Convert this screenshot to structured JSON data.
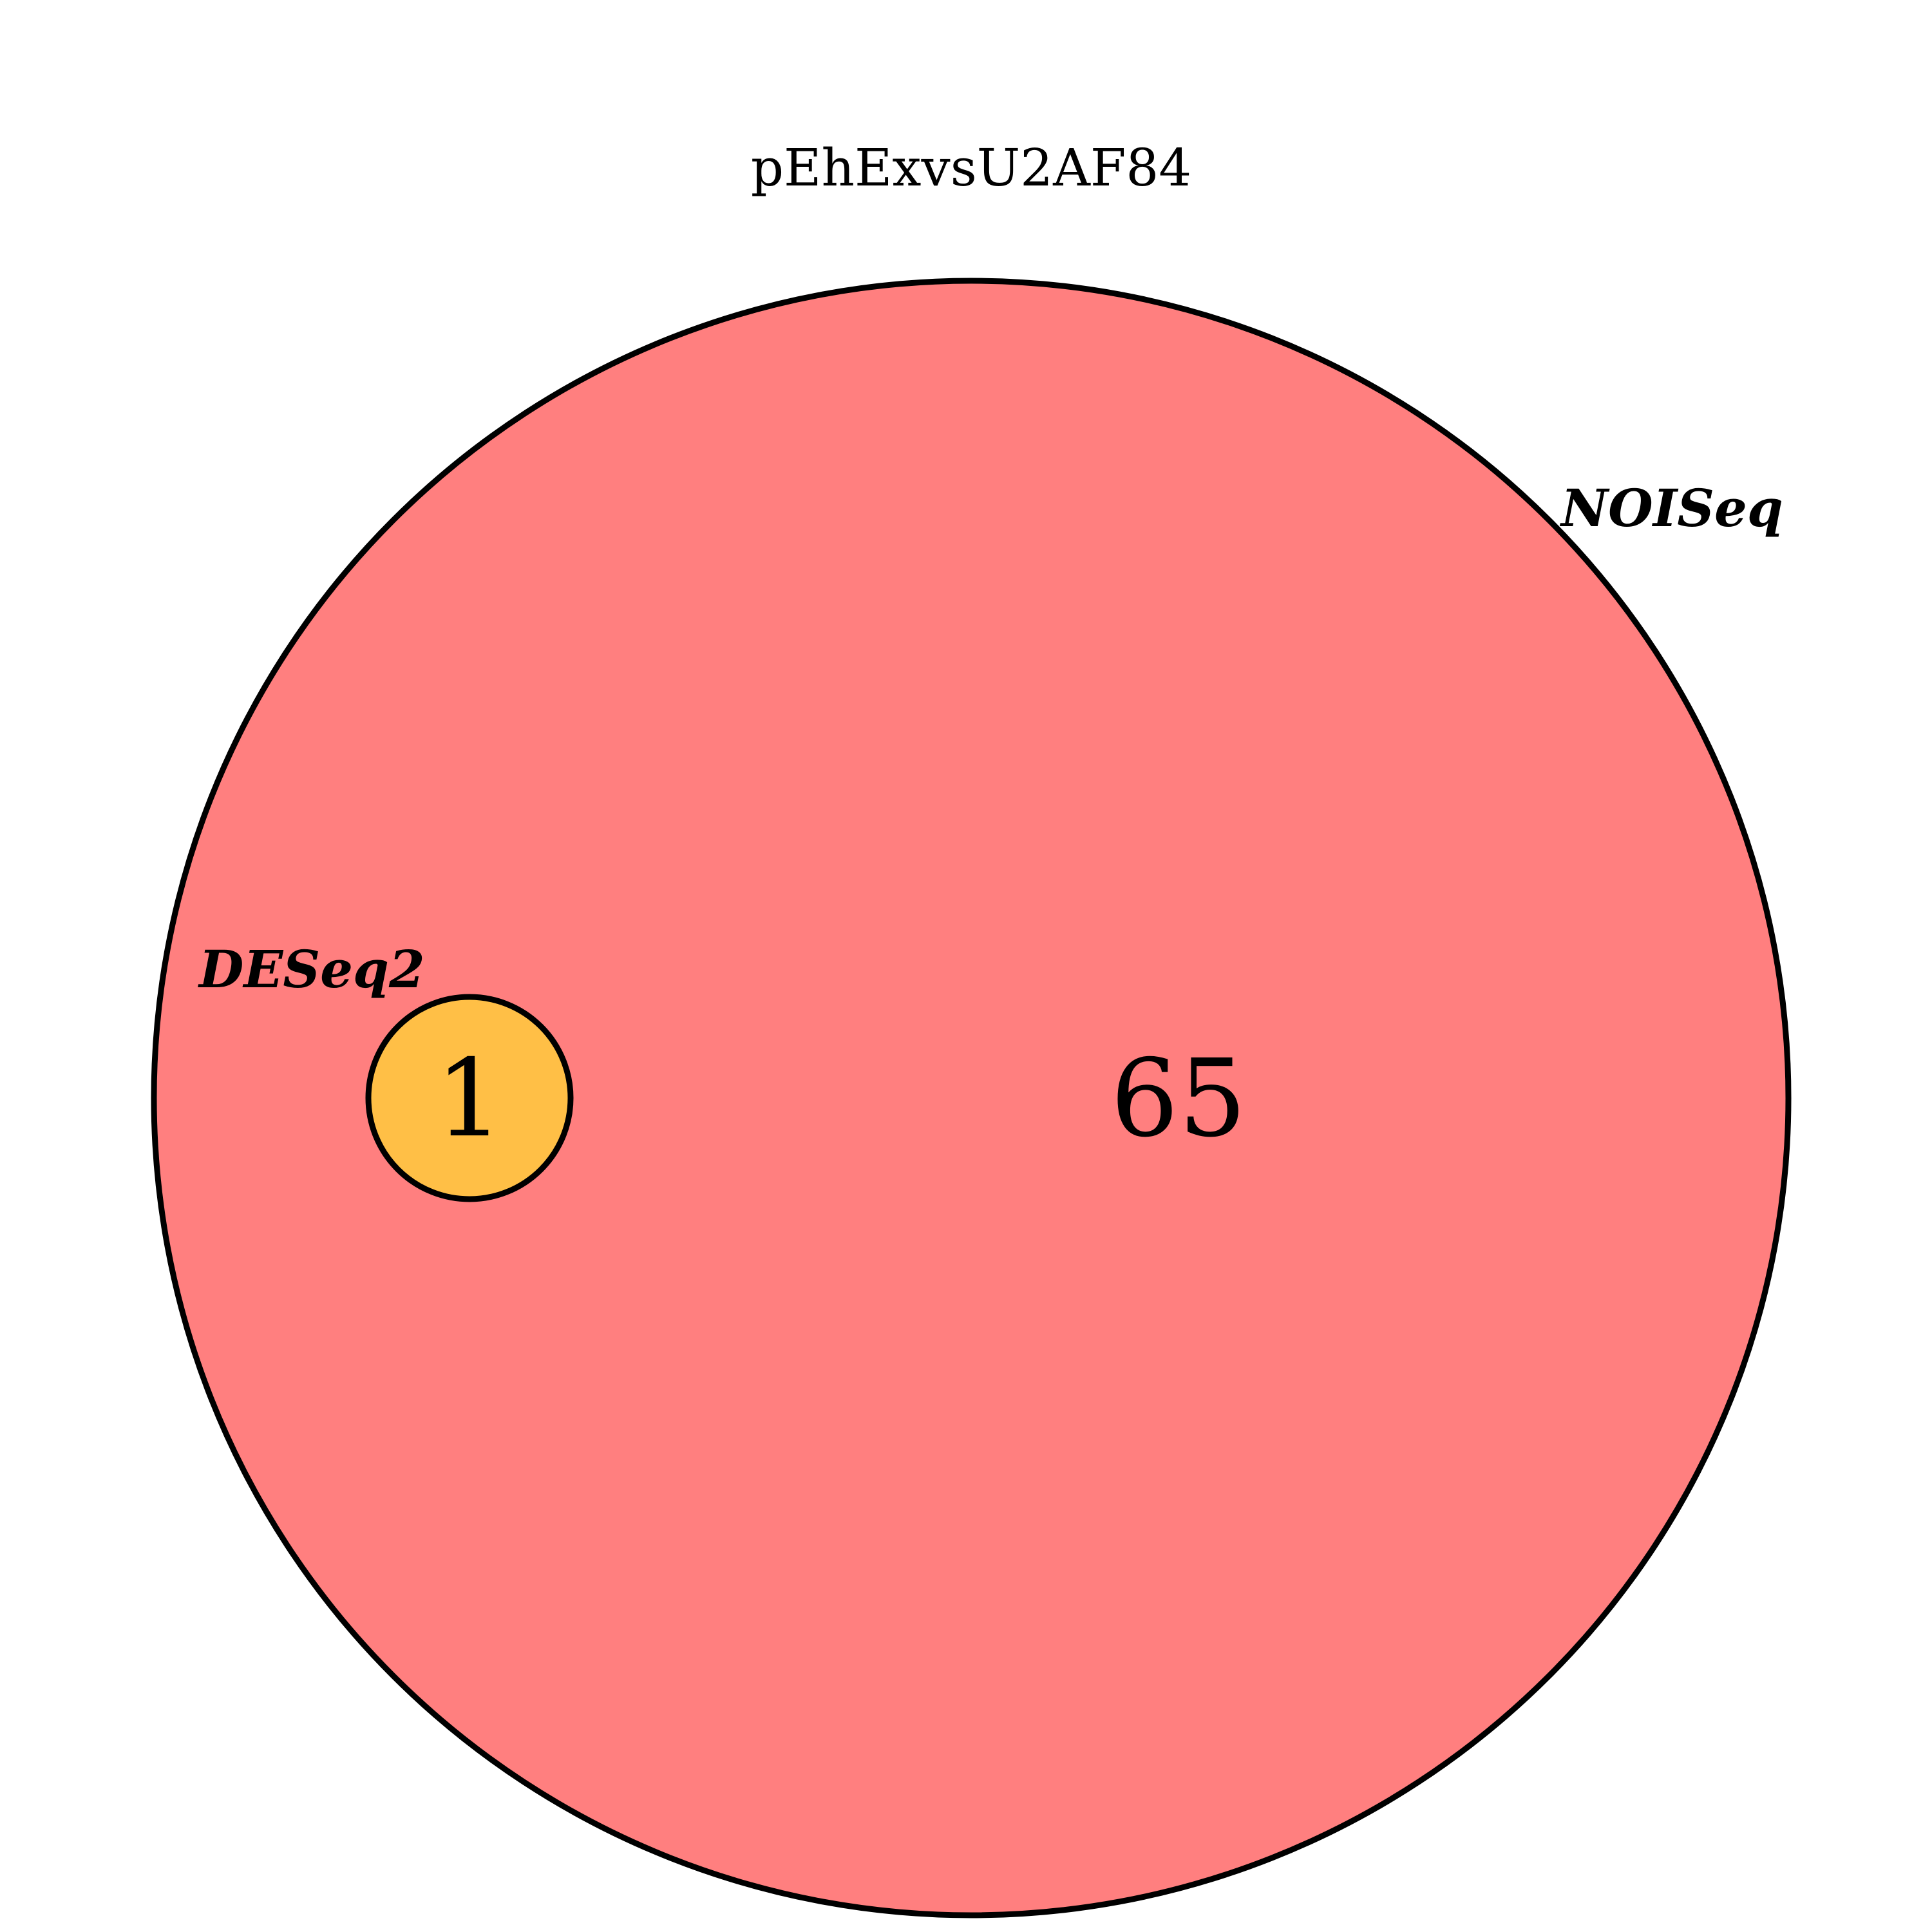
{
  "title": "pEhExvsU2AF84",
  "sets": [
    {
      "name": "NOISeq",
      "color": "#ff7f7f"
    },
    {
      "name": "DESeq2",
      "color": "#ffbf46"
    }
  ],
  "regions": {
    "noiseq_only": "65",
    "deseq2_and_noiseq": "1"
  },
  "stroke_color": "#000000"
}
